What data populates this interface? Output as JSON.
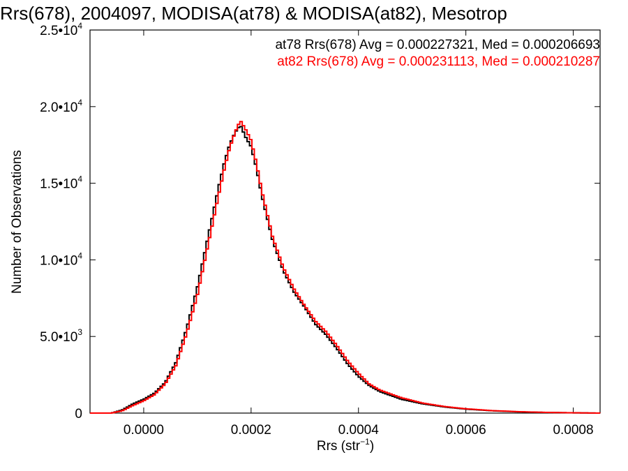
{
  "chart_data": {
    "type": "line",
    "title": "Rrs(678), 2004097, MODISA(at78) & MODISA(at82), Mesotrop",
    "xlabel": "Rrs (str",
    "xlabel_sup": "−1",
    "xlabel_close": ")",
    "ylabel": "Number of Observations",
    "xlim": [
      -0.0001,
      0.00085
    ],
    "ylim": [
      0,
      25000
    ],
    "x_ticks": [
      {
        "value": 0.0,
        "label": "0.0000"
      },
      {
        "value": 0.0002,
        "label": "0.0002"
      },
      {
        "value": 0.0004,
        "label": "0.0004"
      },
      {
        "value": 0.0006,
        "label": "0.0006"
      },
      {
        "value": 0.0008,
        "label": "0.0008"
      }
    ],
    "y_ticks": [
      {
        "value": 0,
        "mant": "0",
        "exp": ""
      },
      {
        "value": 5000,
        "mant": "5.0•10",
        "exp": "3"
      },
      {
        "value": 10000,
        "mant": "1.0•10",
        "exp": "4"
      },
      {
        "value": 15000,
        "mant": "1.5•10",
        "exp": "4"
      },
      {
        "value": 20000,
        "mant": "2.0•10",
        "exp": "4"
      },
      {
        "value": 25000,
        "mant": "2.5•10",
        "exp": "4"
      }
    ],
    "grid": false,
    "legend_position": "top-right",
    "series": [
      {
        "name": "at78 Rrs(678) Avg = 0.000227321, Med = 0.000206693",
        "color": "#000000",
        "x": [
          -0.0001,
          -6e-05,
          -4e-05,
          -2e-05,
          0.0,
          2e-05,
          4e-05,
          6e-05,
          8e-05,
          0.0001,
          0.00012,
          0.00014,
          0.00015,
          0.00016,
          0.00017,
          0.00018,
          0.00019,
          0.0002,
          0.00021,
          0.00022,
          0.00024,
          0.00026,
          0.00028,
          0.0003,
          0.00032,
          0.00034,
          0.00036,
          0.00038,
          0.0004,
          0.00042,
          0.00044,
          0.00048,
          0.00052,
          0.00056,
          0.0006,
          0.00065,
          0.0007,
          0.00075,
          0.0008,
          0.00085
        ],
        "values": [
          0,
          0,
          200,
          600,
          900,
          1300,
          2000,
          3300,
          5500,
          8200,
          11500,
          14800,
          16300,
          17500,
          18300,
          18800,
          18000,
          17400,
          16000,
          14200,
          11300,
          9300,
          7900,
          6900,
          5800,
          5100,
          4200,
          3200,
          2400,
          1800,
          1400,
          900,
          600,
          400,
          260,
          150,
          80,
          40,
          20,
          0
        ]
      },
      {
        "name": "at82 Rrs(678) Avg = 0.000231113, Med = 0.000210287",
        "color": "#ff0000",
        "x": [
          -0.0001,
          -6e-05,
          -4e-05,
          -2e-05,
          0.0,
          2e-05,
          4e-05,
          6e-05,
          8e-05,
          0.0001,
          0.00012,
          0.00014,
          0.00015,
          0.00016,
          0.00017,
          0.00018,
          0.00019,
          0.0002,
          0.00021,
          0.00022,
          0.00024,
          0.00026,
          0.00028,
          0.0003,
          0.00032,
          0.00034,
          0.00036,
          0.00038,
          0.0004,
          0.00042,
          0.00044,
          0.00048,
          0.00052,
          0.00056,
          0.0006,
          0.00065,
          0.0007,
          0.00075,
          0.0008,
          0.00085
        ],
        "values": [
          0,
          0,
          150,
          500,
          800,
          1200,
          1900,
          3100,
          5200,
          7700,
          11000,
          14300,
          15900,
          17300,
          18300,
          19100,
          18500,
          17800,
          16300,
          14500,
          11500,
          9500,
          8100,
          7000,
          6000,
          5300,
          4400,
          3400,
          2600,
          1900,
          1500,
          1000,
          650,
          430,
          280,
          160,
          90,
          45,
          20,
          0
        ]
      }
    ]
  }
}
